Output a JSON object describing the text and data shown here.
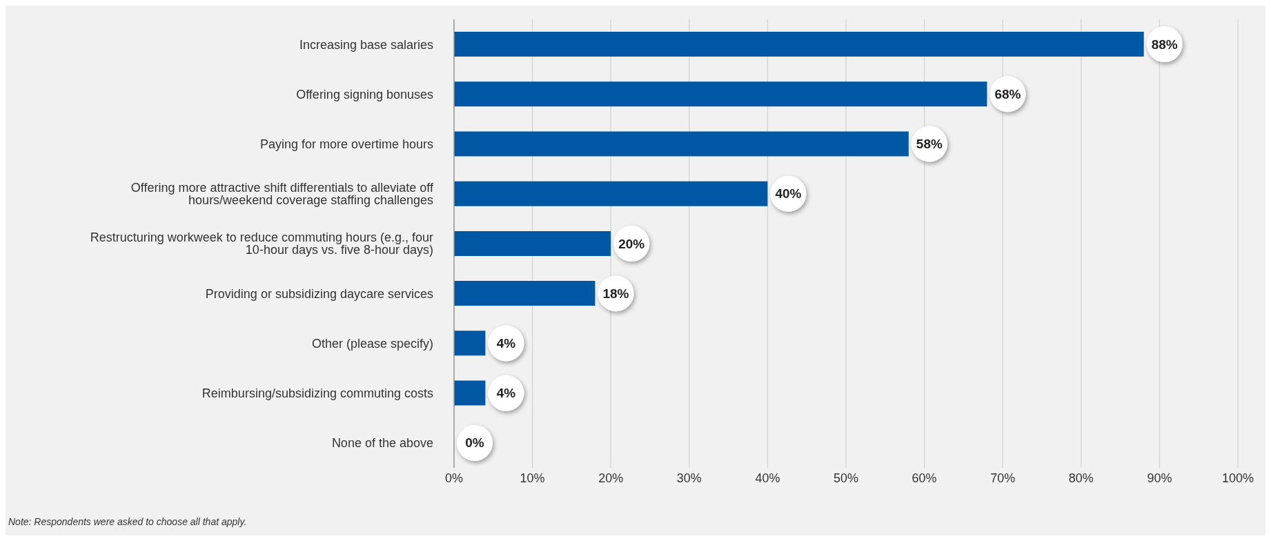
{
  "chart_data": {
    "type": "bar",
    "orientation": "horizontal",
    "categories": [
      "Increasing base salaries",
      "Offering signing bonuses",
      "Paying for more overtime hours",
      "Offering more attractive shift differentials to alleviate off hours/weekend coverage staffing challenges",
      "Restructuring workweek to reduce commuting hours (e.g., four 10-hour days vs. five 8-hour days)",
      "Providing or subsidizing daycare services",
      "Other (please specify)",
      "Reimbursing/subsidizing commuting costs",
      "None of the above"
    ],
    "values": [
      88,
      68,
      58,
      40,
      20,
      18,
      4,
      4,
      0
    ],
    "value_labels": [
      "88%",
      "68%",
      "58%",
      "40%",
      "20%",
      "18%",
      "4%",
      "4%",
      "0%"
    ],
    "color": "#0057a4",
    "xlim": [
      0,
      100
    ],
    "xticks": [
      {
        "value": 0,
        "label": "0%"
      },
      {
        "value": 10,
        "label": "10%"
      },
      {
        "value": 20,
        "label": "20%"
      },
      {
        "value": 30,
        "label": "30%"
      },
      {
        "value": 40,
        "label": "40%"
      },
      {
        "value": 50,
        "label": "50%"
      },
      {
        "value": 60,
        "label": "60%"
      },
      {
        "value": 70,
        "label": "70%"
      },
      {
        "value": 80,
        "label": "80%"
      },
      {
        "value": 90,
        "label": "90%"
      },
      {
        "value": 100,
        "label": "100%"
      }
    ],
    "grid": "x",
    "annotations": [
      "Note: Respondents were asked to choose all that apply."
    ]
  }
}
